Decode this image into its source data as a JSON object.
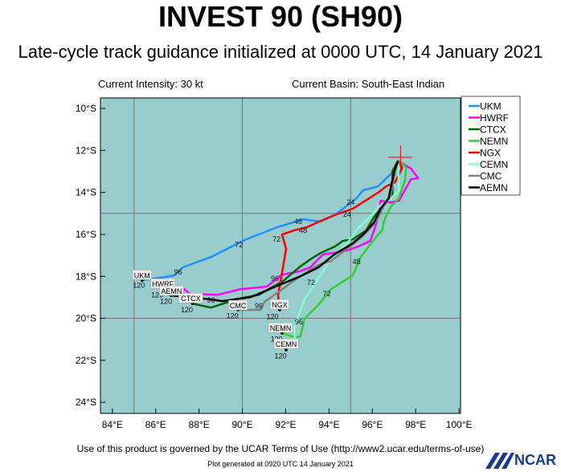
{
  "header": {
    "title": "INVEST 90 (SH90)",
    "subtitle": "Late-cycle track guidance initialized at 0000 UTC, 14 January 2021",
    "intensity": "Current Intensity: 30 kt",
    "basin": "Current Basin: South-East Indian"
  },
  "footer": {
    "terms": "Use of this product is governed by the UCAR Terms of Use (http://www2.ucar.edu/terms-of-use)",
    "generated": "Plot generated at 0920 UTC  14 January 2021",
    "logo": "NCAR"
  },
  "chart_data": {
    "type": "line",
    "map": true,
    "background_color": "#99cccc",
    "xlim": [
      83.45,
      100.07
    ],
    "ylim": [
      -24.53,
      -9.5
    ],
    "grid": "every 5 degrees",
    "x_ticks": [
      {
        "v": 84,
        "label": "84°E"
      },
      {
        "v": 86,
        "label": "86°E"
      },
      {
        "v": 88,
        "label": "88°E"
      },
      {
        "v": 90,
        "label": "90°E"
      },
      {
        "v": 92,
        "label": "92°E"
      },
      {
        "v": 94,
        "label": "94°E"
      },
      {
        "v": 96,
        "label": "96°E"
      },
      {
        "v": 98,
        "label": "98°E"
      },
      {
        "v": 100,
        "label": "100°E"
      }
    ],
    "y_ticks": [
      {
        "v": -10,
        "label": "10°S"
      },
      {
        "v": -12,
        "label": "12°S"
      },
      {
        "v": -14,
        "label": "14°S"
      },
      {
        "v": -16,
        "label": "16°S"
      },
      {
        "v": -18,
        "label": "18°S"
      },
      {
        "v": -20,
        "label": "20°S"
      },
      {
        "v": -22,
        "label": "22°S"
      },
      {
        "v": -24,
        "label": "24°S"
      }
    ],
    "current_position": {
      "lon": 97.3,
      "lat": -12.33,
      "color": "#ff0000"
    },
    "legend_position": "right, outside top",
    "series": [
      {
        "name": "UKM",
        "color": "#1e90ff",
        "tag": {
          "lon": 85.37,
          "lat": -17.93
        },
        "points": [
          [
            97.19,
            -12.68
          ],
          [
            97.01,
            -12.98
          ],
          [
            96.64,
            -13.33
          ],
          [
            96.27,
            -13.71
          ],
          [
            95.57,
            -13.9
          ],
          [
            95.27,
            -14.28
          ],
          [
            94.35,
            -15.01
          ],
          [
            93.61,
            -15.39
          ],
          [
            92.8,
            -15.28
          ],
          [
            91.5,
            -15.7
          ],
          [
            90.1,
            -16.27
          ],
          [
            88.55,
            -17.08
          ],
          [
            87.25,
            -17.57
          ],
          [
            86.85,
            -17.96
          ],
          [
            85.37,
            -18.19
          ]
        ],
        "labels": [
          {
            "text": "24",
            "lon": 95.0,
            "lat": -14.44
          },
          {
            "text": "48",
            "lon": 92.57,
            "lat": -15.36
          },
          {
            "text": "72",
            "lon": 89.84,
            "lat": -16.47
          },
          {
            "text": "96",
            "lon": 87.03,
            "lat": -17.77
          },
          {
            "text": "120",
            "lon": 85.22,
            "lat": -18.4
          }
        ]
      },
      {
        "name": "HWRF",
        "color": "#ff00ff",
        "tag": {
          "lon": 86.33,
          "lat": -18.34
        },
        "points": [
          [
            97.3,
            -12.56
          ],
          [
            97.78,
            -12.87
          ],
          [
            98.12,
            -13.33
          ],
          [
            97.78,
            -13.37
          ],
          [
            97.6,
            -13.71
          ],
          [
            97.23,
            -14.4
          ],
          [
            96.86,
            -14.48
          ],
          [
            96.38,
            -14.4
          ],
          [
            96.27,
            -15.17
          ],
          [
            96.08,
            -15.82
          ],
          [
            95.9,
            -16.31
          ],
          [
            95.35,
            -16.58
          ],
          [
            94.83,
            -16.77
          ],
          [
            93.72,
            -16.96
          ],
          [
            93.42,
            -17.27
          ],
          [
            93.13,
            -17.58
          ],
          [
            92.61,
            -17.77
          ],
          [
            91.83,
            -17.92
          ],
          [
            91.13,
            -18.49
          ],
          [
            89.91,
            -18.61
          ],
          [
            88.88,
            -18.88
          ],
          [
            87.58,
            -18.84
          ],
          [
            87.22,
            -18.53
          ],
          [
            86.4,
            -18.68
          ]
        ],
        "labels": [
          {
            "text": "120",
            "lon": 86.07,
            "lat": -18.85
          }
        ]
      },
      {
        "name": "CTCX",
        "color": "#006400",
        "tag": {
          "lon": 87.62,
          "lat": -19.03
        },
        "points": [
          [
            97.19,
            -12.49
          ],
          [
            96.93,
            -12.98
          ],
          [
            96.93,
            -14.21
          ],
          [
            96.68,
            -14.4
          ],
          [
            96.38,
            -14.78
          ],
          [
            96.08,
            -15.17
          ],
          [
            95.71,
            -15.82
          ],
          [
            95.09,
            -16.24
          ],
          [
            94.64,
            -16.31
          ],
          [
            94.27,
            -16.58
          ],
          [
            93.61,
            -16.89
          ],
          [
            93.13,
            -17.19
          ],
          [
            92.61,
            -17.58
          ],
          [
            91.87,
            -18.23
          ],
          [
            90.76,
            -18.88
          ],
          [
            89.8,
            -19.07
          ],
          [
            88.55,
            -19.49
          ],
          [
            87.7,
            -19.3
          ]
        ],
        "labels": [
          {
            "text": "120",
            "lon": 87.44,
            "lat": -19.55
          },
          {
            "text": "96",
            "lon": 88.55,
            "lat": -19.1
          }
        ]
      },
      {
        "name": "NEMN",
        "color": "#32cd32",
        "tag": {
          "lon": 91.76,
          "lat": -20.44
        },
        "points": [
          [
            97.19,
            -12.49
          ],
          [
            97.56,
            -12.79
          ],
          [
            97.52,
            -13.37
          ],
          [
            97.23,
            -14.28
          ],
          [
            96.86,
            -14.67
          ],
          [
            96.56,
            -15.28
          ],
          [
            96.45,
            -15.82
          ],
          [
            96.08,
            -16.24
          ],
          [
            95.46,
            -17.08
          ],
          [
            95.09,
            -17.96
          ],
          [
            94.09,
            -18.61
          ],
          [
            93.5,
            -19.37
          ],
          [
            92.87,
            -20.02
          ],
          [
            92.68,
            -20.87
          ],
          [
            92.39,
            -20.9
          ],
          [
            91.83,
            -20.71
          ]
        ],
        "labels": [
          {
            "text": "48",
            "lon": 95.27,
            "lat": -17.27
          },
          {
            "text": "72",
            "lon": 93.9,
            "lat": -18.8
          },
          {
            "text": "96",
            "lon": 92.61,
            "lat": -20.14
          },
          {
            "text": "120",
            "lon": 91.58,
            "lat": -20.95
          }
        ]
      },
      {
        "name": "NGX",
        "color": "#ff0000",
        "tag": {
          "lon": 91.72,
          "lat": -19.33
        },
        "points": [
          [
            97.19,
            -12.49
          ],
          [
            97.38,
            -12.83
          ],
          [
            97.05,
            -13.52
          ],
          [
            96.64,
            -13.71
          ],
          [
            96.31,
            -13.98
          ],
          [
            95.09,
            -14.78
          ],
          [
            94.35,
            -15.05
          ],
          [
            93.61,
            -15.36
          ],
          [
            92.98,
            -15.66
          ],
          [
            92.39,
            -15.81
          ],
          [
            91.83,
            -16.01
          ],
          [
            92.02,
            -16.69
          ],
          [
            91.83,
            -17.84
          ],
          [
            91.65,
            -18.88
          ],
          [
            91.72,
            -19.6
          ]
        ],
        "labels": [
          {
            "text": "24",
            "lon": 94.83,
            "lat": -15.01
          },
          {
            "text": "48",
            "lon": 92.8,
            "lat": -15.78
          },
          {
            "text": "72",
            "lon": 91.58,
            "lat": -16.2
          },
          {
            "text": "96",
            "lon": 91.5,
            "lat": -18.07
          },
          {
            "text": "120",
            "lon": 91.39,
            "lat": -19.88
          }
        ]
      },
      {
        "name": "CEMN",
        "color": "#7fffd4",
        "tag": {
          "lon": 92.02,
          "lat": -21.21
        },
        "points": [
          [
            97.19,
            -12.49
          ],
          [
            97.23,
            -13.9
          ],
          [
            96.82,
            -14.32
          ],
          [
            96.31,
            -14.67
          ],
          [
            95.9,
            -15.17
          ],
          [
            95.38,
            -15.66
          ],
          [
            94.83,
            -16.43
          ],
          [
            93.98,
            -17.34
          ],
          [
            93.35,
            -18.34
          ],
          [
            92.87,
            -19.1
          ],
          [
            92.39,
            -20.4
          ],
          [
            92.43,
            -20.9
          ],
          [
            92.02,
            -21.51
          ]
        ],
        "labels": [
          {
            "text": "72",
            "lon": 93.17,
            "lat": -18.26
          },
          {
            "text": "120",
            "lon": 91.76,
            "lat": -21.75
          }
        ]
      },
      {
        "name": "CMC",
        "color": "#808080",
        "tag": {
          "lon": 89.8,
          "lat": -19.37
        },
        "points": [
          [
            97.19,
            -12.49
          ],
          [
            97.08,
            -12.95
          ],
          [
            96.82,
            -14.21
          ],
          [
            96.49,
            -14.71
          ],
          [
            96.2,
            -15.36
          ],
          [
            95.71,
            -15.93
          ],
          [
            95.2,
            -16.39
          ],
          [
            94.09,
            -17.27
          ],
          [
            93.5,
            -17.46
          ],
          [
            92.61,
            -18.03
          ],
          [
            91.76,
            -18.68
          ],
          [
            91.02,
            -19.22
          ],
          [
            90.84,
            -19.6
          ],
          [
            89.8,
            -19.6
          ]
        ],
        "labels": [
          {
            "text": "96",
            "lon": 90.76,
            "lat": -19.37
          },
          {
            "text": "120",
            "lon": 89.54,
            "lat": -19.85
          }
        ]
      },
      {
        "name": "AEMN",
        "color": "#000000",
        "tag": {
          "lon": 86.73,
          "lat": -18.68
        },
        "points": [
          [
            97.19,
            -12.49
          ],
          [
            97.01,
            -12.98
          ],
          [
            96.75,
            -14.28
          ],
          [
            96.38,
            -14.78
          ],
          [
            96.08,
            -15.43
          ],
          [
            95.57,
            -16.01
          ],
          [
            95.09,
            -16.43
          ],
          [
            94.24,
            -16.96
          ],
          [
            93.5,
            -17.58
          ],
          [
            92.61,
            -18.03
          ],
          [
            91.87,
            -18.34
          ],
          [
            90.39,
            -18.99
          ],
          [
            89.06,
            -19.18
          ],
          [
            88.55,
            -19.1
          ],
          [
            86.7,
            -18.91
          ]
        ],
        "labels": [
          {
            "text": "120",
            "lon": 86.48,
            "lat": -19.15
          }
        ]
      }
    ]
  }
}
